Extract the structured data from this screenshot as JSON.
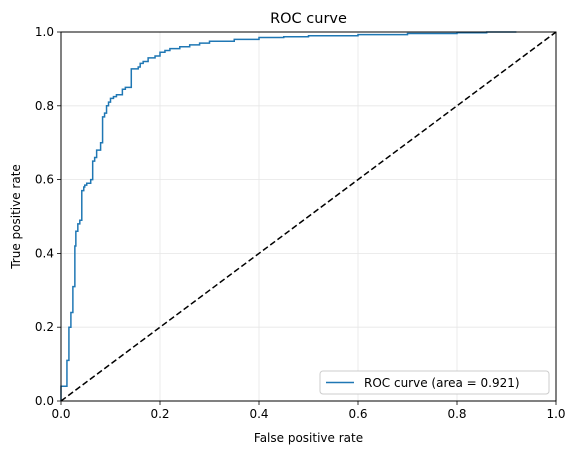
{
  "chart_data": {
    "type": "line",
    "title": "ROC curve",
    "xlabel": "False positive rate",
    "ylabel": "True positive rate",
    "xlim": [
      0.0,
      1.0
    ],
    "ylim": [
      0.0,
      1.0
    ],
    "xticks": [
      "0.0",
      "0.2",
      "0.4",
      "0.6",
      "0.8",
      "1.0"
    ],
    "yticks": [
      "0.0",
      "0.2",
      "0.4",
      "0.6",
      "0.8",
      "1.0"
    ],
    "grid": true,
    "legend_position": "lower right",
    "series": [
      {
        "name": "ROC curve (area = 0.921)",
        "color": "#1f77b4",
        "style": "step",
        "x": [
          0.0,
          0.0,
          0.012,
          0.012,
          0.016,
          0.016,
          0.02,
          0.02,
          0.024,
          0.024,
          0.028,
          0.028,
          0.03,
          0.03,
          0.034,
          0.034,
          0.038,
          0.038,
          0.042,
          0.042,
          0.046,
          0.046,
          0.048,
          0.048,
          0.052,
          0.052,
          0.06,
          0.06,
          0.064,
          0.064,
          0.068,
          0.068,
          0.072,
          0.072,
          0.08,
          0.08,
          0.084,
          0.084,
          0.088,
          0.088,
          0.092,
          0.092,
          0.096,
          0.096,
          0.1,
          0.1,
          0.106,
          0.106,
          0.112,
          0.112,
          0.124,
          0.124,
          0.13,
          0.13,
          0.142,
          0.142,
          0.156,
          0.156,
          0.16,
          0.16,
          0.166,
          0.166,
          0.176,
          0.176,
          0.19,
          0.19,
          0.2,
          0.2,
          0.21,
          0.21,
          0.22,
          0.22,
          0.24,
          0.24,
          0.26,
          0.26,
          0.28,
          0.28,
          0.3,
          0.3,
          0.35,
          0.35,
          0.4,
          0.4,
          0.45,
          0.45,
          0.5,
          0.5,
          0.6,
          0.6,
          0.7,
          0.7,
          0.8,
          0.8,
          0.86,
          0.86,
          0.92
        ],
        "y": [
          0.0,
          0.04,
          0.04,
          0.11,
          0.11,
          0.2,
          0.2,
          0.24,
          0.24,
          0.31,
          0.31,
          0.42,
          0.42,
          0.46,
          0.46,
          0.48,
          0.48,
          0.49,
          0.49,
          0.57,
          0.57,
          0.58,
          0.58,
          0.585,
          0.585,
          0.59,
          0.59,
          0.6,
          0.6,
          0.65,
          0.65,
          0.66,
          0.66,
          0.68,
          0.68,
          0.7,
          0.7,
          0.77,
          0.77,
          0.78,
          0.78,
          0.8,
          0.8,
          0.81,
          0.81,
          0.82,
          0.82,
          0.825,
          0.825,
          0.83,
          0.83,
          0.845,
          0.845,
          0.85,
          0.85,
          0.9,
          0.9,
          0.905,
          0.905,
          0.915,
          0.915,
          0.92,
          0.92,
          0.93,
          0.93,
          0.935,
          0.935,
          0.945,
          0.945,
          0.95,
          0.95,
          0.955,
          0.955,
          0.96,
          0.96,
          0.965,
          0.965,
          0.97,
          0.97,
          0.975,
          0.975,
          0.98,
          0.98,
          0.985,
          0.985,
          0.987,
          0.987,
          0.99,
          0.99,
          0.993,
          0.993,
          0.996,
          0.996,
          0.998,
          0.998,
          1.0,
          1.0
        ]
      },
      {
        "color": "#000000",
        "style": "dashed",
        "x": [
          0.0,
          1.0
        ],
        "y": [
          0.0,
          1.0
        ]
      }
    ]
  }
}
